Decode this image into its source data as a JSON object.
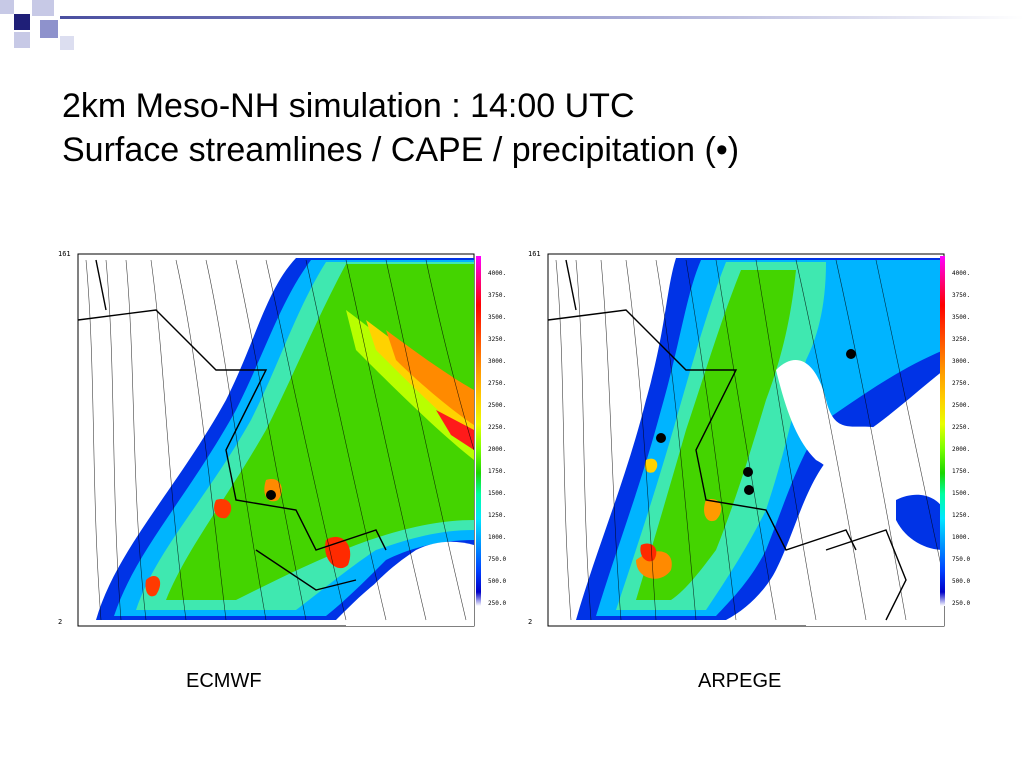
{
  "title_line1": "2km Meso-NH simulation : 14:00 UTC",
  "title_line2": "Surface streamlines / CAPE / precipitation (•)",
  "colors": {
    "accent_dark": "#1f1f78",
    "accent_mid": "#4a4fa0",
    "accent_light": "#a9acd6"
  },
  "panels": [
    {
      "caption": "ECMWF",
      "axis_top": "161",
      "axis_bottom": "2",
      "legend": [
        "4000.",
        "3750.",
        "3500.",
        "3250.",
        "3000.",
        "2750.",
        "2500.",
        "2250.",
        "2000.",
        "1750.",
        "1500.",
        "1250.",
        "1000.",
        "750.0",
        "500.0",
        "250.0"
      ]
    },
    {
      "caption": "ARPEGE",
      "axis_top": "161",
      "axis_bottom": "2",
      "legend": [
        "4000.",
        "3750.",
        "3500.",
        "3250.",
        "3000.",
        "2750.",
        "2500.",
        "2250.",
        "2000.",
        "1750.",
        "1500.",
        "1250.",
        "1000.",
        "750.0",
        "500.0",
        "250.0"
      ]
    }
  ]
}
